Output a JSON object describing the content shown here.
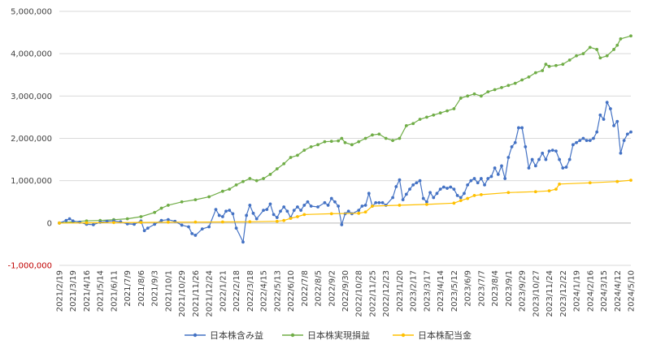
{
  "chart_data": {
    "type": "line",
    "title": "",
    "xlabel": "",
    "ylabel": "",
    "ylim": [
      -1000000,
      5000000
    ],
    "yticks": [
      -1000000,
      0,
      1000000,
      2000000,
      3000000,
      4000000,
      5000000
    ],
    "ytick_labels": [
      "-1,000,000",
      "0",
      "1,000,000",
      "2,000,000",
      "3,000,000",
      "4,000,000",
      "5,000,000"
    ],
    "ytick_colors": [
      "#c00000",
      "#404040",
      "#404040",
      "#404040",
      "#404040",
      "#404040",
      "#404040"
    ],
    "grid": "horizontal",
    "legend_position": "bottom",
    "x_start": "2021/2/19",
    "x_end": "2024/5/10",
    "x_ticks": [
      "2021/2/19",
      "2021/3/19",
      "2021/4/16",
      "2021/5/14",
      "2021/6/11",
      "2021/7/9",
      "2021/8/6",
      "2021/9/3",
      "2021/10/1",
      "2021/10/29",
      "2021/11/26",
      "2021/12/24",
      "2022/1/21",
      "2022/2/18",
      "2022/3/18",
      "2022/4/15",
      "2022/5/13",
      "2022/6/10",
      "2022/7/8",
      "2022/8/5",
      "2022/9/2",
      "2022/9/30",
      "2022/10/28",
      "2022/11/25",
      "2022/12/23",
      "2023/1/20",
      "2023/2/17",
      "2023/3/17",
      "2023/4/14",
      "2023/5/12",
      "2023/6/9",
      "2023/7/7",
      "2023/8/4",
      "2023/9/1",
      "2023/9/29",
      "2023/10/27",
      "2023/11/24",
      "2023/12/22",
      "2024/1/19",
      "2024/2/16",
      "2024/3/15",
      "2024/4/12",
      "2024/5/10"
    ],
    "series": [
      {
        "name": "日本株含み益",
        "color": "#4472c4",
        "points": [
          [
            "2021/2/19",
            0
          ],
          [
            "2021/3/5",
            60000
          ],
          [
            "2021/3/12",
            100000
          ],
          [
            "2021/3/19",
            50000
          ],
          [
            "2021/4/2",
            20000
          ],
          [
            "2021/4/16",
            -30000
          ],
          [
            "2021/4/30",
            -40000
          ],
          [
            "2021/5/14",
            20000
          ],
          [
            "2021/5/28",
            40000
          ],
          [
            "2021/6/11",
            50000
          ],
          [
            "2021/6/25",
            30000
          ],
          [
            "2021/7/9",
            -20000
          ],
          [
            "2021/7/23",
            -30000
          ],
          [
            "2021/8/6",
            50000
          ],
          [
            "2021/8/13",
            -180000
          ],
          [
            "2021/8/20",
            -120000
          ],
          [
            "2021/9/3",
            -30000
          ],
          [
            "2021/9/17",
            60000
          ],
          [
            "2021/10/1",
            80000
          ],
          [
            "2021/10/15",
            40000
          ],
          [
            "2021/10/29",
            -50000
          ],
          [
            "2021/11/12",
            -90000
          ],
          [
            "2021/11/19",
            -250000
          ],
          [
            "2021/11/26",
            -290000
          ],
          [
            "2021/12/10",
            -140000
          ],
          [
            "2021/12/24",
            -90000
          ],
          [
            "2022/1/7",
            320000
          ],
          [
            "2022/1/14",
            180000
          ],
          [
            "2022/1/21",
            150000
          ],
          [
            "2022/1/28",
            280000
          ],
          [
            "2022/2/4",
            300000
          ],
          [
            "2022/2/11",
            220000
          ],
          [
            "2022/2/18",
            -120000
          ],
          [
            "2022/3/4",
            -450000
          ],
          [
            "2022/3/11",
            180000
          ],
          [
            "2022/3/18",
            420000
          ],
          [
            "2022/3/25",
            230000
          ],
          [
            "2022/4/1",
            100000
          ],
          [
            "2022/4/15",
            300000
          ],
          [
            "2022/4/22",
            320000
          ],
          [
            "2022/4/29",
            450000
          ],
          [
            "2022/5/6",
            200000
          ],
          [
            "2022/5/13",
            130000
          ],
          [
            "2022/5/20",
            280000
          ],
          [
            "2022/5/27",
            380000
          ],
          [
            "2022/6/3",
            280000
          ],
          [
            "2022/6/10",
            130000
          ],
          [
            "2022/6/17",
            300000
          ],
          [
            "2022/6/24",
            380000
          ],
          [
            "2022/7/1",
            300000
          ],
          [
            "2022/7/8",
            420000
          ],
          [
            "2022/7/15",
            500000
          ],
          [
            "2022/7/22",
            400000
          ],
          [
            "2022/8/5",
            380000
          ],
          [
            "2022/8/19",
            480000
          ],
          [
            "2022/8/26",
            420000
          ],
          [
            "2022/9/2",
            580000
          ],
          [
            "2022/9/9",
            500000
          ],
          [
            "2022/9/16",
            400000
          ],
          [
            "2022/9/23",
            -40000
          ],
          [
            "2022/9/30",
            220000
          ],
          [
            "2022/10/7",
            280000
          ],
          [
            "2022/10/14",
            220000
          ],
          [
            "2022/10/28",
            300000
          ],
          [
            "2022/11/4",
            400000
          ],
          [
            "2022/11/11",
            420000
          ],
          [
            "2022/11/18",
            700000
          ],
          [
            "2022/11/25",
            400000
          ],
          [
            "2022/12/2",
            480000
          ],
          [
            "2022/12/9",
            480000
          ],
          [
            "2022/12/16",
            480000
          ],
          [
            "2022/12/23",
            420000
          ],
          [
            "2023/1/6",
            600000
          ],
          [
            "2023/1/13",
            860000
          ],
          [
            "2023/1/20",
            1020000
          ],
          [
            "2023/1/27",
            550000
          ],
          [
            "2023/2/3",
            680000
          ],
          [
            "2023/2/10",
            800000
          ],
          [
            "2023/2/17",
            900000
          ],
          [
            "2023/2/24",
            950000
          ],
          [
            "2023/3/3",
            1000000
          ],
          [
            "2023/3/10",
            580000
          ],
          [
            "2023/3/17",
            500000
          ],
          [
            "2023/3/24",
            720000
          ],
          [
            "2023/3/31",
            600000
          ],
          [
            "2023/4/7",
            700000
          ],
          [
            "2023/4/14",
            800000
          ],
          [
            "2023/4/21",
            850000
          ],
          [
            "2023/4/28",
            820000
          ],
          [
            "2023/5/5",
            850000
          ],
          [
            "2023/5/12",
            800000
          ],
          [
            "2023/5/19",
            650000
          ],
          [
            "2023/5/26",
            600000
          ],
          [
            "2023/6/2",
            700000
          ],
          [
            "2023/6/9",
            900000
          ],
          [
            "2023/6/16",
            1000000
          ],
          [
            "2023/6/23",
            1050000
          ],
          [
            "2023/6/30",
            950000
          ],
          [
            "2023/7/7",
            1050000
          ],
          [
            "2023/7/14",
            900000
          ],
          [
            "2023/7/21",
            1050000
          ],
          [
            "2023/7/28",
            1100000
          ],
          [
            "2023/8/4",
            1300000
          ],
          [
            "2023/8/11",
            1150000
          ],
          [
            "2023/8/18",
            1350000
          ],
          [
            "2023/8/25",
            1050000
          ],
          [
            "2023/9/1",
            1550000
          ],
          [
            "2023/9/8",
            1800000
          ],
          [
            "2023/9/15",
            1900000
          ],
          [
            "2023/9/22",
            2250000
          ],
          [
            "2023/9/29",
            2250000
          ],
          [
            "2023/10/6",
            1800000
          ],
          [
            "2023/10/13",
            1300000
          ],
          [
            "2023/10/20",
            1500000
          ],
          [
            "2023/10/27",
            1350000
          ],
          [
            "2023/11/3",
            1500000
          ],
          [
            "2023/11/10",
            1650000
          ],
          [
            "2023/11/17",
            1500000
          ],
          [
            "2023/11/24",
            1700000
          ],
          [
            "2023/12/1",
            1720000
          ],
          [
            "2023/12/8",
            1700000
          ],
          [
            "2023/12/15",
            1500000
          ],
          [
            "2023/12/22",
            1300000
          ],
          [
            "2023/12/29",
            1320000
          ],
          [
            "2024/1/5",
            1500000
          ],
          [
            "2024/1/12",
            1850000
          ],
          [
            "2024/1/19",
            1900000
          ],
          [
            "2024/1/26",
            1950000
          ],
          [
            "2024/2/2",
            2000000
          ],
          [
            "2024/2/9",
            1950000
          ],
          [
            "2024/2/16",
            1950000
          ],
          [
            "2024/2/23",
            2000000
          ],
          [
            "2024/3/1",
            2150000
          ],
          [
            "2024/3/8",
            2550000
          ],
          [
            "2024/3/15",
            2450000
          ],
          [
            "2024/3/22",
            2850000
          ],
          [
            "2024/3/29",
            2700000
          ],
          [
            "2024/4/5",
            2300000
          ],
          [
            "2024/4/12",
            2400000
          ],
          [
            "2024/4/19",
            1650000
          ],
          [
            "2024/4/26",
            1950000
          ],
          [
            "2024/5/3",
            2100000
          ],
          [
            "2024/5/10",
            2150000
          ]
        ]
      },
      {
        "name": "日本株実現損益",
        "color": "#70ad47",
        "points": [
          [
            "2021/2/19",
            0
          ],
          [
            "2021/3/19",
            30000
          ],
          [
            "2021/4/16",
            50000
          ],
          [
            "2021/5/14",
            60000
          ],
          [
            "2021/6/11",
            80000
          ],
          [
            "2021/7/9",
            100000
          ],
          [
            "2021/8/6",
            150000
          ],
          [
            "2021/9/3",
            250000
          ],
          [
            "2021/9/17",
            350000
          ],
          [
            "2021/10/1",
            420000
          ],
          [
            "2021/10/29",
            500000
          ],
          [
            "2021/11/26",
            550000
          ],
          [
            "2021/12/24",
            620000
          ],
          [
            "2022/1/21",
            750000
          ],
          [
            "2022/2/4",
            800000
          ],
          [
            "2022/2/18",
            900000
          ],
          [
            "2022/3/4",
            980000
          ],
          [
            "2022/3/18",
            1050000
          ],
          [
            "2022/4/1",
            1000000
          ],
          [
            "2022/4/15",
            1050000
          ],
          [
            "2022/4/29",
            1150000
          ],
          [
            "2022/5/13",
            1280000
          ],
          [
            "2022/5/27",
            1400000
          ],
          [
            "2022/6/10",
            1550000
          ],
          [
            "2022/6/24",
            1600000
          ],
          [
            "2022/7/8",
            1720000
          ],
          [
            "2022/7/22",
            1800000
          ],
          [
            "2022/8/5",
            1850000
          ],
          [
            "2022/8/19",
            1920000
          ],
          [
            "2022/9/2",
            1930000
          ],
          [
            "2022/9/16",
            1940000
          ],
          [
            "2022/9/23",
            2000000
          ],
          [
            "2022/9/30",
            1900000
          ],
          [
            "2022/10/14",
            1850000
          ],
          [
            "2022/10/28",
            1920000
          ],
          [
            "2022/11/11",
            2000000
          ],
          [
            "2022/11/25",
            2080000
          ],
          [
            "2022/12/9",
            2100000
          ],
          [
            "2022/12/23",
            2000000
          ],
          [
            "2023/1/6",
            1950000
          ],
          [
            "2023/1/20",
            2000000
          ],
          [
            "2023/2/3",
            2300000
          ],
          [
            "2023/2/17",
            2350000
          ],
          [
            "2023/3/3",
            2450000
          ],
          [
            "2023/3/17",
            2500000
          ],
          [
            "2023/3/31",
            2550000
          ],
          [
            "2023/4/14",
            2600000
          ],
          [
            "2023/4/28",
            2650000
          ],
          [
            "2023/5/12",
            2700000
          ],
          [
            "2023/5/26",
            2950000
          ],
          [
            "2023/6/9",
            3000000
          ],
          [
            "2023/6/23",
            3050000
          ],
          [
            "2023/7/7",
            3000000
          ],
          [
            "2023/7/21",
            3100000
          ],
          [
            "2023/8/4",
            3150000
          ],
          [
            "2023/8/18",
            3200000
          ],
          [
            "2023/9/1",
            3250000
          ],
          [
            "2023/9/15",
            3300000
          ],
          [
            "2023/9/29",
            3380000
          ],
          [
            "2023/10/13",
            3450000
          ],
          [
            "2023/10/27",
            3550000
          ],
          [
            "2023/11/10",
            3600000
          ],
          [
            "2023/11/17",
            3750000
          ],
          [
            "2023/11/24",
            3700000
          ],
          [
            "2023/12/8",
            3720000
          ],
          [
            "2023/12/22",
            3750000
          ],
          [
            "2024/1/5",
            3850000
          ],
          [
            "2024/1/19",
            3950000
          ],
          [
            "2024/2/2",
            4000000
          ],
          [
            "2024/2/16",
            4150000
          ],
          [
            "2024/3/1",
            4100000
          ],
          [
            "2024/3/8",
            3900000
          ],
          [
            "2024/3/22",
            3950000
          ],
          [
            "2024/4/5",
            4100000
          ],
          [
            "2024/4/12",
            4200000
          ],
          [
            "2024/4/19",
            4350000
          ],
          [
            "2024/5/10",
            4420000
          ]
        ]
      },
      {
        "name": "日本株配当金",
        "color": "#ffc000",
        "points": [
          [
            "2021/2/19",
            0
          ],
          [
            "2021/4/16",
            5000
          ],
          [
            "2021/6/11",
            10000
          ],
          [
            "2021/8/6",
            15000
          ],
          [
            "2021/10/1",
            20000
          ],
          [
            "2021/11/26",
            22000
          ],
          [
            "2022/1/21",
            25000
          ],
          [
            "2022/3/18",
            30000
          ],
          [
            "2022/5/13",
            40000
          ],
          [
            "2022/5/27",
            60000
          ],
          [
            "2022/6/10",
            110000
          ],
          [
            "2022/6/24",
            150000
          ],
          [
            "2022/7/8",
            200000
          ],
          [
            "2022/9/2",
            220000
          ],
          [
            "2022/10/28",
            230000
          ],
          [
            "2022/11/11",
            260000
          ],
          [
            "2022/11/25",
            400000
          ],
          [
            "2023/1/20",
            420000
          ],
          [
            "2023/3/17",
            440000
          ],
          [
            "2023/5/12",
            470000
          ],
          [
            "2023/5/26",
            530000
          ],
          [
            "2023/6/9",
            580000
          ],
          [
            "2023/6/23",
            650000
          ],
          [
            "2023/7/7",
            670000
          ],
          [
            "2023/9/1",
            720000
          ],
          [
            "2023/10/27",
            740000
          ],
          [
            "2023/11/24",
            760000
          ],
          [
            "2023/12/8",
            800000
          ],
          [
            "2023/12/15",
            920000
          ],
          [
            "2024/2/16",
            950000
          ],
          [
            "2024/4/12",
            980000
          ],
          [
            "2024/5/10",
            1010000
          ]
        ]
      }
    ]
  }
}
